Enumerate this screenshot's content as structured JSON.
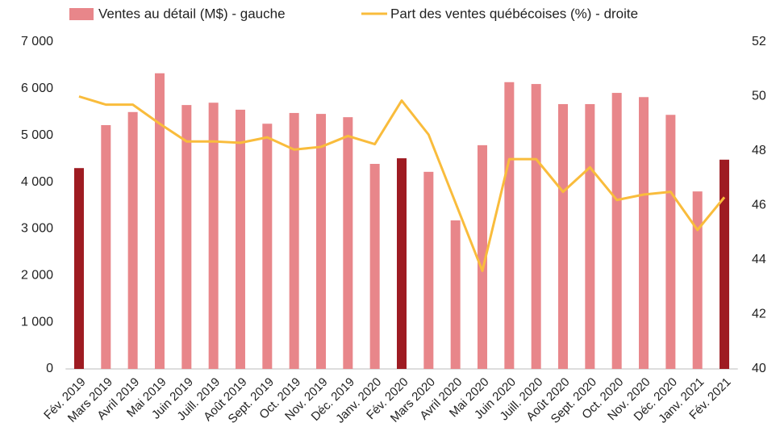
{
  "chart_data": {
    "type": "combo",
    "categories": [
      "Fév. 2019",
      "Mars 2019",
      "Avril 2019",
      "Mai 2019",
      "Juin 2019",
      "Juill. 2019",
      "Août 2019",
      "Sept. 2019",
      "Oct. 2019",
      "Nov. 2019",
      "Déc. 2019",
      "Janv. 2020",
      "Fév. 2020",
      "Mars 2020",
      "Avril 2020",
      "Mai 2020",
      "Juin 2020",
      "Juill. 2020",
      "Août 2020",
      "Sept. 2020",
      "Oct. 2020",
      "Nov. 2020",
      "Déc. 2020",
      "Janv. 2021",
      "Fév. 2021"
    ],
    "series": [
      {
        "name": "Ventes au détail (M$) - gauche",
        "type": "bar",
        "color": "#e8868a",
        "colors": [
          "#9e1b22",
          "#e8868a",
          "#e8868a",
          "#e8868a",
          "#e8868a",
          "#e8868a",
          "#e8868a",
          "#e8868a",
          "#e8868a",
          "#e8868a",
          "#e8868a",
          "#e8868a",
          "#9e1b22",
          "#e8868a",
          "#e8868a",
          "#e8868a",
          "#e8868a",
          "#e8868a",
          "#e8868a",
          "#e8868a",
          "#e8868a",
          "#e8868a",
          "#e8868a",
          "#e8868a",
          "#9e1b22"
        ],
        "values": [
          4300,
          5220,
          5500,
          6330,
          5650,
          5700,
          5550,
          5250,
          5480,
          5460,
          5390,
          4390,
          4510,
          4220,
          3180,
          4790,
          6140,
          6100,
          5670,
          5670,
          5910,
          5820,
          5440,
          3800,
          4480
        ]
      },
      {
        "name": "Part des ventes québécoises (%) - droite",
        "type": "line",
        "axis": "y2",
        "color": "#f9bc3c",
        "values": [
          50.0,
          49.7,
          49.7,
          49.0,
          48.35,
          48.35,
          48.3,
          48.5,
          48.05,
          48.15,
          48.55,
          48.25,
          49.85,
          48.6,
          46.1,
          43.6,
          47.7,
          47.7,
          46.5,
          47.4,
          46.2,
          46.4,
          46.5,
          45.1,
          46.3
        ]
      }
    ],
    "ylim": [
      0,
      7000
    ],
    "yticks": [
      0,
      {
        "value": 1000,
        "label": "1 000"
      },
      {
        "value": 2000,
        "label": "2 000"
      },
      {
        "value": 3000,
        "label": "3 000"
      },
      {
        "value": 4000,
        "label": "4 000"
      },
      {
        "value": 5000,
        "label": "5 000"
      },
      {
        "value": 6000,
        "label": "6 000"
      },
      {
        "value": 7000,
        "label": "7 000"
      }
    ],
    "y2lim": [
      40,
      52
    ],
    "y2ticks": [
      40,
      42,
      44,
      46,
      48,
      50,
      52
    ],
    "legend": "top"
  }
}
